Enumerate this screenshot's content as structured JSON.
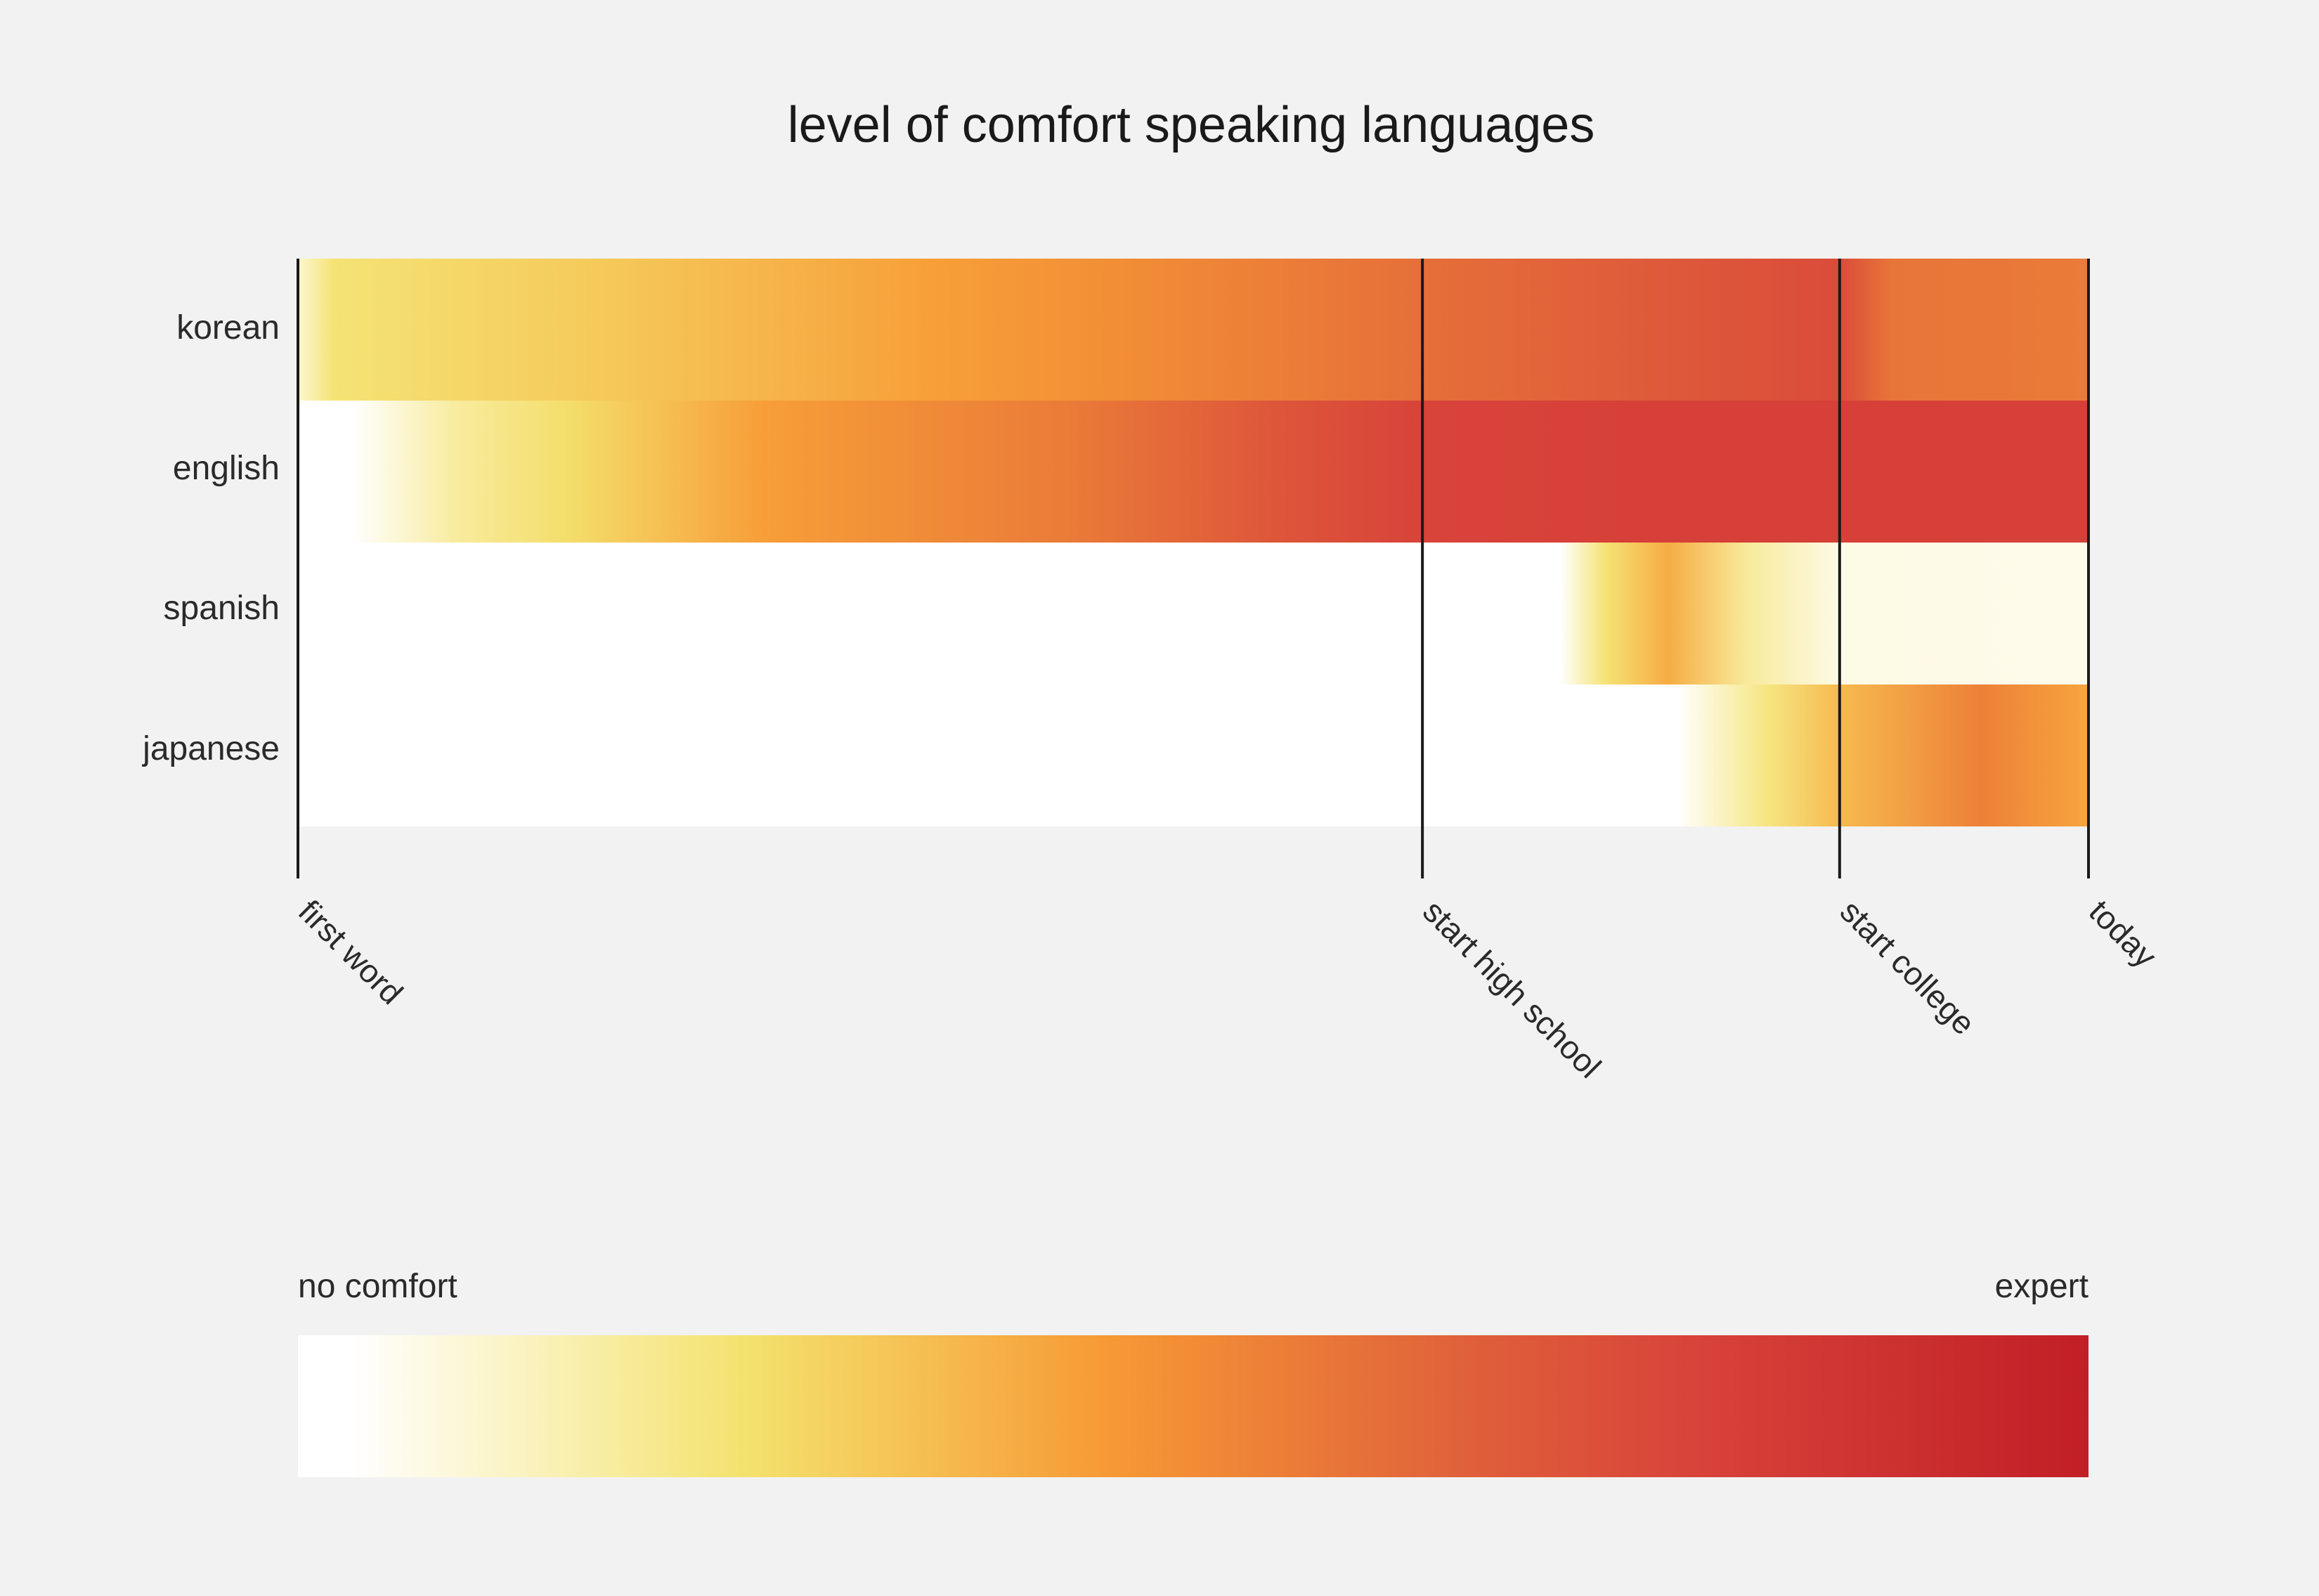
{
  "chart_data": {
    "type": "heatmap",
    "title": "level of comfort speaking languages",
    "rows": [
      "korean",
      "english",
      "spanish",
      "japanese"
    ],
    "x_milestones": [
      {
        "label": "first word",
        "pos": 0.0
      },
      {
        "label": "start high school",
        "pos": 0.628
      },
      {
        "label": "start college",
        "pos": 0.861
      },
      {
        "label": "today",
        "pos": 1.0
      }
    ],
    "color_scale": {
      "min_label": "no comfort",
      "max_label": "expert",
      "min_value": 0,
      "max_value": 1,
      "stops": [
        {
          "value": 0.0,
          "color": "#ffffff"
        },
        {
          "value": 0.03,
          "color": "#ffffff"
        },
        {
          "value": 0.25,
          "color": "#f4e26e"
        },
        {
          "value": 0.45,
          "color": "#f79a35"
        },
        {
          "value": 0.65,
          "color": "#e0613a"
        },
        {
          "value": 0.78,
          "color": "#d8433a"
        },
        {
          "value": 1.0,
          "color": "#c11f26"
        }
      ]
    },
    "series": [
      {
        "name": "korean",
        "comfort": [
          {
            "x": 0.0,
            "v": 0.1
          },
          {
            "x": 0.02,
            "v": 0.24
          },
          {
            "x": 0.17,
            "v": 0.32
          },
          {
            "x": 0.36,
            "v": 0.44
          },
          {
            "x": 0.47,
            "v": 0.5
          },
          {
            "x": 0.628,
            "v": 0.6
          },
          {
            "x": 0.76,
            "v": 0.68
          },
          {
            "x": 0.861,
            "v": 0.74
          },
          {
            "x": 0.89,
            "v": 0.58
          },
          {
            "x": 1.0,
            "v": 0.56
          }
        ]
      },
      {
        "name": "english",
        "comfort": [
          {
            "x": 0.0,
            "v": 0.0
          },
          {
            "x": 0.03,
            "v": 0.0
          },
          {
            "x": 0.09,
            "v": 0.18
          },
          {
            "x": 0.15,
            "v": 0.26
          },
          {
            "x": 0.26,
            "v": 0.44
          },
          {
            "x": 0.43,
            "v": 0.56
          },
          {
            "x": 0.55,
            "v": 0.7
          },
          {
            "x": 0.628,
            "v": 0.78
          },
          {
            "x": 0.76,
            "v": 0.8
          },
          {
            "x": 1.0,
            "v": 0.8
          }
        ]
      },
      {
        "name": "spanish",
        "comfort": [
          {
            "x": 0.0,
            "v": 0.0
          },
          {
            "x": 0.705,
            "v": 0.0
          },
          {
            "x": 0.73,
            "v": 0.24
          },
          {
            "x": 0.765,
            "v": 0.4
          },
          {
            "x": 0.81,
            "v": 0.18
          },
          {
            "x": 0.86,
            "v": 0.07
          },
          {
            "x": 1.0,
            "v": 0.06
          }
        ]
      },
      {
        "name": "japanese",
        "comfort": [
          {
            "x": 0.0,
            "v": 0.0
          },
          {
            "x": 0.77,
            "v": 0.0
          },
          {
            "x": 0.82,
            "v": 0.22
          },
          {
            "x": 0.861,
            "v": 0.36
          },
          {
            "x": 0.94,
            "v": 0.54
          },
          {
            "x": 1.0,
            "v": 0.42
          }
        ]
      }
    ]
  }
}
